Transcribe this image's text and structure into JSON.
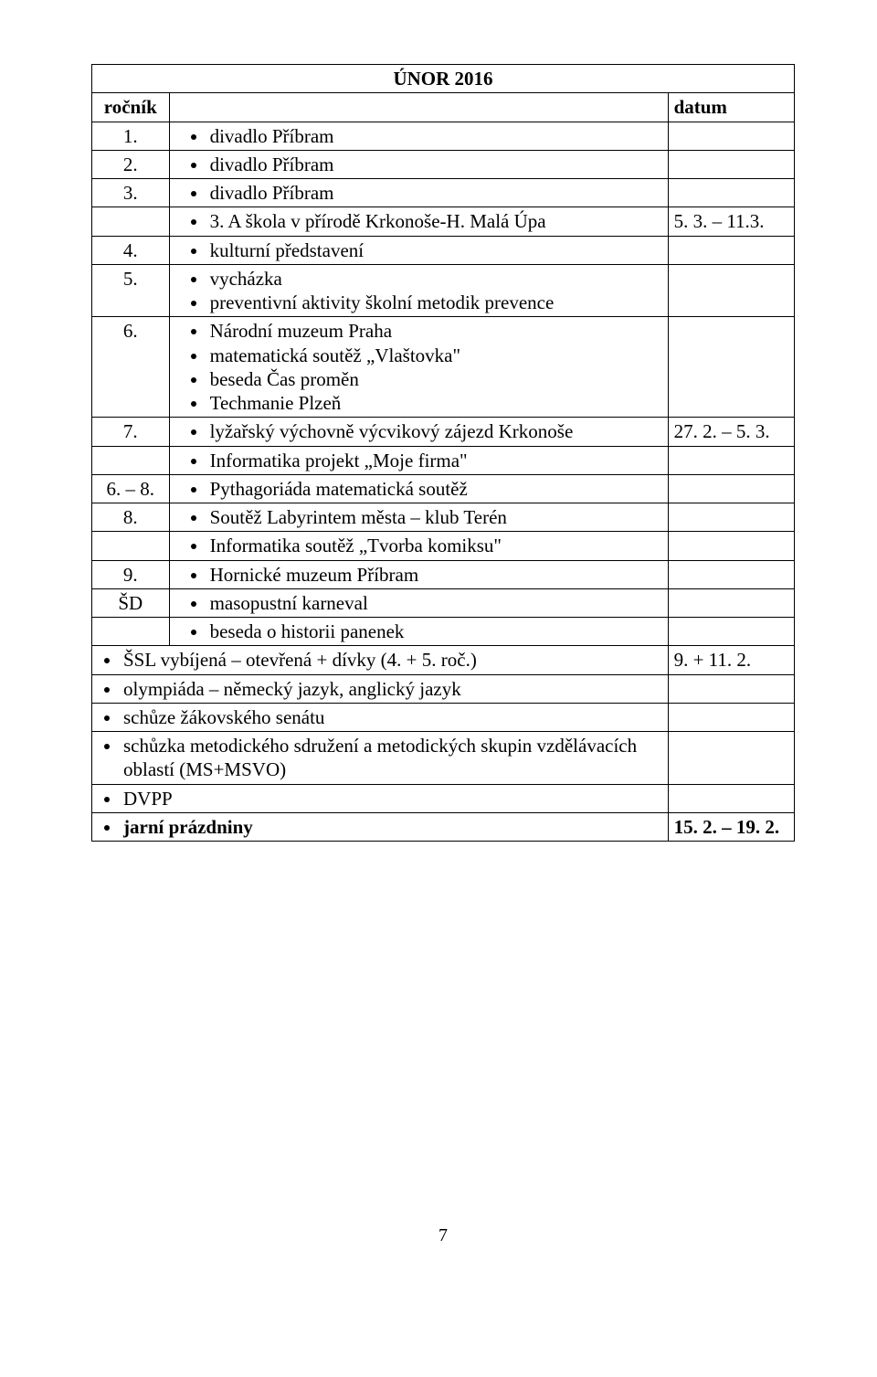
{
  "title": "ÚNOR 2016",
  "header": {
    "left": "ročník",
    "right": "datum"
  },
  "rows": [
    {
      "n": "1.",
      "items": [
        "divadlo Příbram"
      ],
      "date": ""
    },
    {
      "n": "2.",
      "items": [
        "divadlo Příbram"
      ],
      "date": ""
    },
    {
      "n": "3.",
      "items": [
        "divadlo Příbram"
      ],
      "date": ""
    },
    {
      "n": "",
      "items": [
        "3. A škola v přírodě Krkonoše-H. Malá Úpa"
      ],
      "date": "5. 3. – 11.3."
    },
    {
      "n": "4.",
      "items": [
        "kulturní představení"
      ],
      "date": ""
    },
    {
      "n": "5.",
      "items": [
        "vycházka",
        "preventivní aktivity školní metodik prevence"
      ],
      "date": ""
    },
    {
      "n": "6.",
      "items": [
        "Národní muzeum Praha",
        "matematická soutěž „Vlaštovka\"",
        "beseda Čas proměn",
        "Techmanie Plzeň"
      ],
      "date": ""
    },
    {
      "n": "7.",
      "items": [
        "lyžařský výchovně výcvikový zájezd Krkonoše"
      ],
      "date": "27. 2. – 5. 3."
    },
    {
      "n": "",
      "items": [
        "Informatika projekt „Moje firma\""
      ],
      "date": ""
    },
    {
      "n": "6. – 8.",
      "items": [
        "Pythagoriáda matematická soutěž"
      ],
      "date": ""
    },
    {
      "n": "8.",
      "items": [
        "Soutěž Labyrintem města – klub Terén"
      ],
      "date": ""
    },
    {
      "n": "",
      "items": [
        "Informatika soutěž „Tvorba komiksu\""
      ],
      "date": ""
    },
    {
      "n": "9.",
      "items": [
        "Hornické muzeum Příbram"
      ],
      "date": ""
    },
    {
      "n": "ŠD",
      "items": [
        "masopustní karneval"
      ],
      "date": ""
    },
    {
      "n": "",
      "items": [
        "beseda o historii panenek"
      ],
      "date": ""
    }
  ],
  "fullrows": [
    {
      "text": "ŠSL vybíjená – otevřená + dívky (4. + 5. roč.)",
      "date": "9. + 11. 2."
    },
    {
      "text": "olympiáda – německý jazyk, anglický jazyk",
      "date": ""
    },
    {
      "text": "schůze žákovského senátu",
      "date": ""
    },
    {
      "text": "schůzka metodického sdružení a metodických skupin vzdělávacích oblastí (MS+MSVO)",
      "date": ""
    },
    {
      "text": "DVPP",
      "date": ""
    },
    {
      "text": "jarní prázdniny",
      "date": "15. 2. – 19. 2.",
      "bold": true
    }
  ],
  "page_number": "7"
}
